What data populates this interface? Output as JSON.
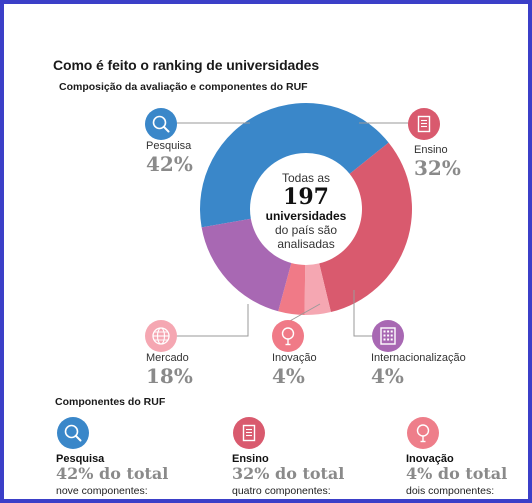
{
  "title": "Como é feito o ranking de universidades",
  "subtitle": "Composição da avaliação e componentes do RUF",
  "center": {
    "line1": "Todas as",
    "number": "197",
    "line3": "universidades",
    "line4": "do país são",
    "line5": "analisadas"
  },
  "labels": {
    "pesquisa": {
      "name": "Pesquisa",
      "pct": "42%"
    },
    "ensino": {
      "name": "Ensino",
      "pct": "32%"
    },
    "mercado": {
      "name": "Mercado",
      "pct": "18%"
    },
    "inovacao": {
      "name": "Inovação",
      "pct": "4%"
    },
    "internacionalizacao": {
      "name": "Internacionalização",
      "pct": "4%"
    }
  },
  "components": {
    "title": "Componentes do RUF",
    "items": [
      {
        "name": "Pesquisa",
        "total": "42% do total",
        "desc": "nove componentes:",
        "icon": "magnifier-icon",
        "color": "#3a87c9"
      },
      {
        "name": "Ensino",
        "total": "32% do total",
        "desc": "quatro componentes:",
        "icon": "document-icon",
        "color": "#d95a6e"
      },
      {
        "name": "Inovação",
        "total": "4% do total",
        "desc": "dois componentes:",
        "icon": "lightbulb-icon",
        "color": "#ee7e8a"
      }
    ]
  },
  "chart_data": {
    "type": "pie",
    "variant": "donut",
    "categories": [
      "Pesquisa",
      "Ensino",
      "Internacionalização",
      "Inovação",
      "Mercado"
    ],
    "values": [
      42,
      32,
      4,
      4,
      18
    ],
    "colors": [
      "#3a87c9",
      "#d95a6e",
      "#f5a7b2",
      "#f07a87",
      "#a868b3"
    ],
    "icons": [
      "magnifier-icon",
      "document-icon",
      "globe-icon",
      "lightbulb-icon",
      "grid-icon"
    ],
    "title": "Como é feito o ranking de universidades",
    "subtitle": "Composição da avaliação e componentes do RUF"
  }
}
